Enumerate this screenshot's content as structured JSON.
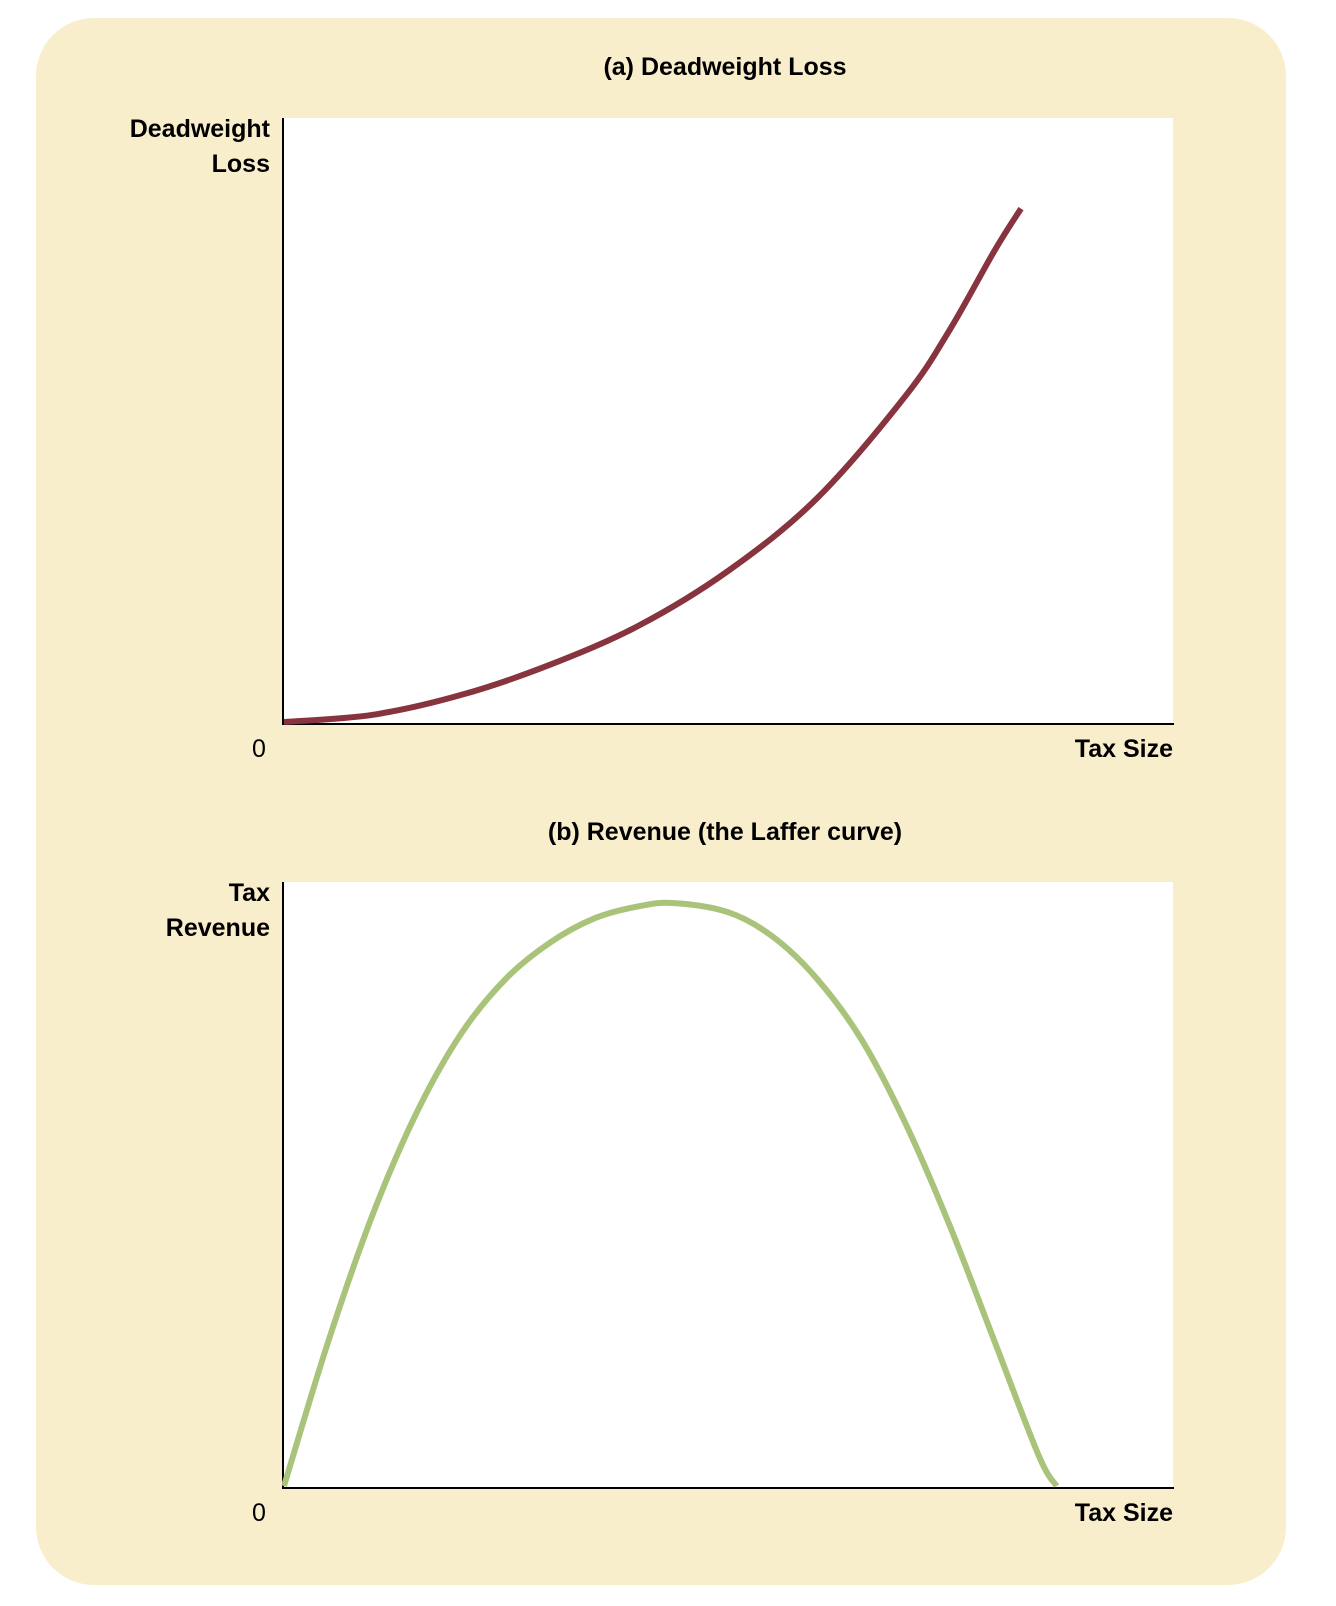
{
  "colors": {
    "background": "#f9eecb",
    "plot_area": "#ffffff",
    "deadweight_curve": "#87343f",
    "laffer_curve": "#a9c47a",
    "axis": "#000000"
  },
  "chart_data": [
    {
      "type": "line",
      "title": "(a) Deadweight Loss",
      "ylabel": "Deadweight Loss",
      "ylabel_lines": [
        "Deadweight",
        "Loss"
      ],
      "xlabel": "Tax Size",
      "origin_label": "0",
      "xlim": [
        0,
        1
      ],
      "ylim": [
        0,
        1
      ],
      "grid": false,
      "series": [
        {
          "color": "#87343f",
          "x": [
            0,
            0.1,
            0.2,
            0.3,
            0.4,
            0.5,
            0.6,
            0.7,
            0.75,
            0.8,
            0.83
          ],
          "y": [
            0,
            0.012,
            0.045,
            0.095,
            0.16,
            0.25,
            0.37,
            0.54,
            0.65,
            0.78,
            0.85
          ]
        }
      ]
    },
    {
      "type": "line",
      "title": "(b) Revenue (the Laffer curve)",
      "ylabel": "Tax Revenue",
      "ylabel_lines": [
        "Tax",
        "Revenue"
      ],
      "xlabel": "Tax Size",
      "origin_label": "0",
      "xlim": [
        0,
        1
      ],
      "ylim": [
        0,
        1
      ],
      "grid": false,
      "series": [
        {
          "color": "#a9c47a",
          "x": [
            0,
            0.05,
            0.1,
            0.15,
            0.2,
            0.25,
            0.3,
            0.35,
            0.4,
            0.44,
            0.5,
            0.55,
            0.6,
            0.65,
            0.7,
            0.75,
            0.8,
            0.85,
            0.87
          ],
          "y": [
            0,
            0.24,
            0.45,
            0.62,
            0.75,
            0.84,
            0.9,
            0.94,
            0.96,
            0.965,
            0.95,
            0.91,
            0.84,
            0.74,
            0.6,
            0.43,
            0.24,
            0.05,
            0
          ]
        }
      ]
    }
  ]
}
